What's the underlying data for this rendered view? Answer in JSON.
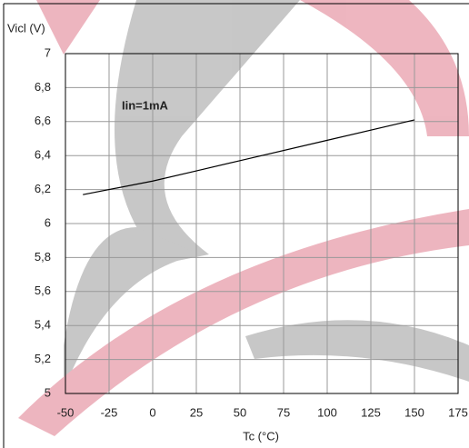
{
  "chart_data": {
    "type": "line",
    "y_label": "Vicl (V)",
    "x_label": "Tc (°C)",
    "annotation": "Iin=1mA",
    "x": [
      -40,
      0,
      25,
      50,
      100,
      150
    ],
    "series": [
      {
        "color": "#000000",
        "values": [
          6.17,
          6.25,
          6.31,
          6.37,
          6.49,
          6.61
        ]
      }
    ],
    "xlim": [
      -50,
      175
    ],
    "xticks": [
      -50,
      -25,
      0,
      25,
      50,
      75,
      100,
      125,
      150,
      175
    ],
    "ylim": [
      5,
      7
    ],
    "yticks": [
      5,
      {
        "value": 5.2,
        "label": "5,2"
      },
      {
        "value": 5.4,
        "label": "5,4"
      },
      {
        "value": 5.6,
        "label": "5,6"
      },
      {
        "value": 5.8,
        "label": "5,8"
      },
      6,
      {
        "value": 6.2,
        "label": "6,2"
      },
      {
        "value": 6.4,
        "label": "6,4"
      },
      {
        "value": 6.6,
        "label": "6,6"
      },
      {
        "value": 6.8,
        "label": "6,8"
      },
      7
    ],
    "grid": true
  }
}
